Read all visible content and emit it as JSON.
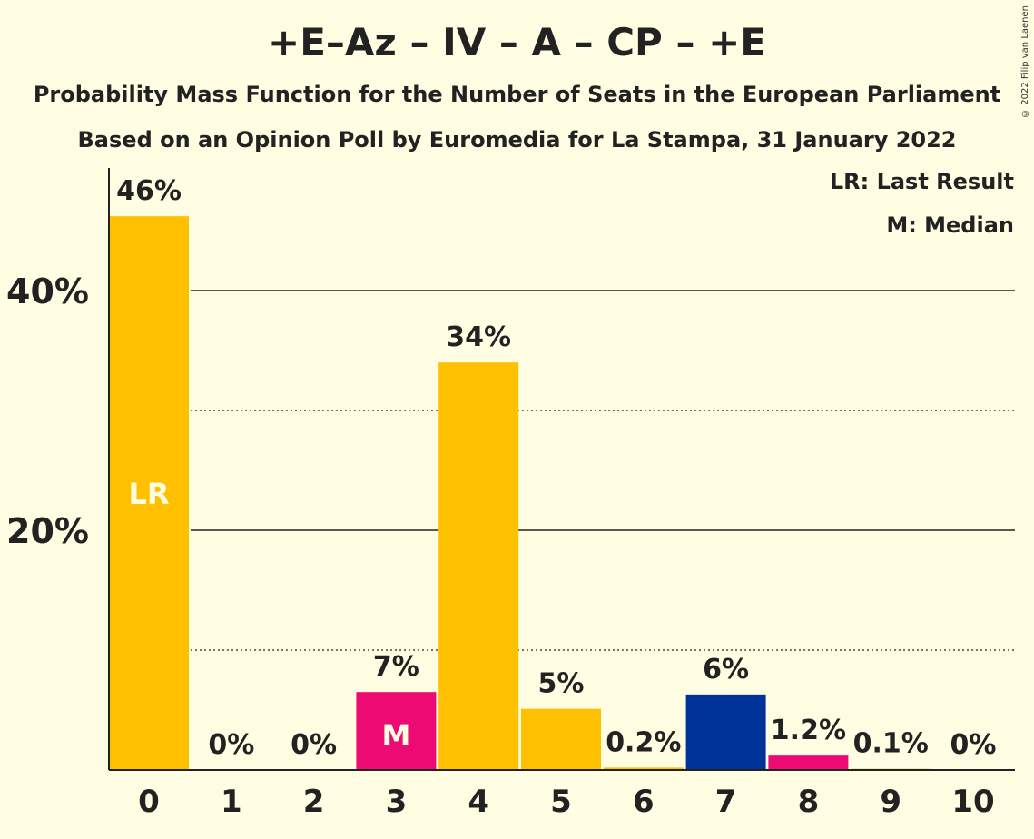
{
  "title": "+E–Az – IV – A – CP – +E",
  "subtitle1": "Probability Mass Function for the Number of Seats in the European Parliament",
  "subtitle2": "Based on an Opinion Poll by Euromedia for La Stampa, 31 January 2022",
  "copyright": "© 2022 Filip van Laenen",
  "legend": {
    "last_result": "LR: Last Result",
    "median": "M: Median"
  },
  "colors": {
    "background": "#FFFEE3",
    "yellow": "#FFC000",
    "pink": "#EE0A73",
    "blue": "#003399"
  },
  "chart_data": {
    "type": "bar",
    "categories": [
      "0",
      "1",
      "2",
      "3",
      "4",
      "5",
      "6",
      "7",
      "8",
      "9",
      "10"
    ],
    "values": [
      46,
      0,
      0,
      7,
      34,
      5,
      0.2,
      6,
      1.2,
      0.1,
      0
    ],
    "display_values": [
      46.2,
      0,
      0,
      6.5,
      34.0,
      5.1,
      0.2,
      6.3,
      1.2,
      0.1,
      0
    ],
    "value_labels": [
      "46%",
      "0%",
      "0%",
      "7%",
      "34%",
      "5%",
      "0.2%",
      "6%",
      "1.2%",
      "0.1%",
      "0%"
    ],
    "bar_colors": [
      "#FFC000",
      "#FFC000",
      "#FFC000",
      "#EE0A73",
      "#FFC000",
      "#FFC000",
      "#FFC000",
      "#003399",
      "#EE0A73",
      "#FFC000",
      "#FFC000"
    ],
    "bar_markers": {
      "0": "LR",
      "3": "M"
    },
    "ylim": [
      0,
      50
    ],
    "yticks": [
      {
        "value": 20,
        "label": "20%"
      },
      {
        "value": 40,
        "label": "40%"
      }
    ],
    "minor_gridlines": [
      10,
      30
    ],
    "xlabel": "",
    "ylabel": "",
    "grid": true,
    "legend_position": "top-right"
  }
}
